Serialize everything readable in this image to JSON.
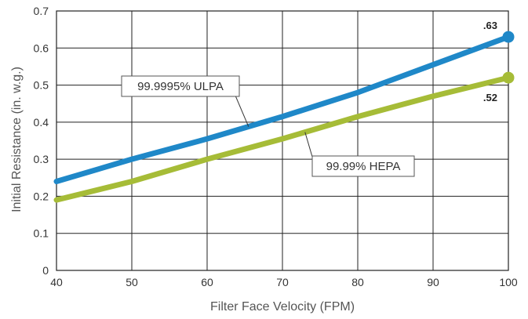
{
  "chart_data": {
    "type": "line",
    "xlabel": "Filter Face Velocity (FPM)",
    "ylabel": "Initial Resistance (in. w.g.)",
    "xlim": [
      40,
      100
    ],
    "ylim": [
      0,
      0.7
    ],
    "grid": true,
    "x_ticks": [
      "40",
      "50",
      "60",
      "70",
      "80",
      "90",
      "100"
    ],
    "y_ticks": [
      "0",
      "0.1",
      "0.2",
      "0.3",
      "0.4",
      "0.5",
      "0.6",
      "0.7"
    ],
    "series": [
      {
        "name": "99.9995% ULPA",
        "color": "#1f88c8",
        "x": [
          40,
          50,
          60,
          70,
          80,
          90,
          100
        ],
        "y": [
          0.24,
          0.3,
          0.355,
          0.415,
          0.48,
          0.555,
          0.63
        ],
        "end_label": ".63"
      },
      {
        "name": "99.99% HEPA",
        "color": "#a6bc37",
        "x": [
          40,
          50,
          60,
          70,
          80,
          90,
          100
        ],
        "y": [
          0.19,
          0.24,
          0.3,
          0.355,
          0.415,
          0.47,
          0.52
        ],
        "end_label": ".52"
      }
    ]
  }
}
